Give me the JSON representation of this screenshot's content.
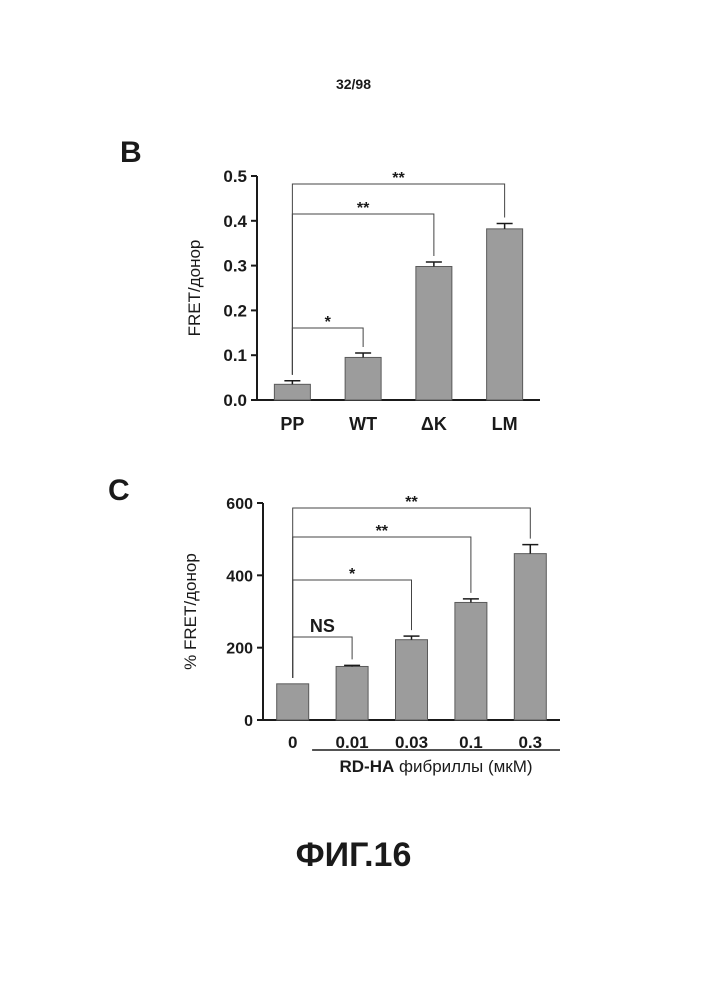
{
  "page": {
    "number": "32/98",
    "caption": "ФИГ.16"
  },
  "colors": {
    "bar": "#9c9c9c",
    "axis": "#1a1a1a"
  },
  "chart_data": [
    {
      "panel": "B",
      "type": "bar",
      "categories": [
        "PP",
        "WT",
        "ΔK",
        "LM"
      ],
      "values": [
        0.035,
        0.095,
        0.298,
        0.382
      ],
      "errors": [
        0.008,
        0.01,
        0.01,
        0.012
      ],
      "ylabel": "FRET/донор",
      "xlabel": "",
      "ylim": [
        0,
        0.5
      ],
      "yticks": [
        "0.0",
        "0.1",
        "0.2",
        "0.3",
        "0.4",
        "0.5"
      ],
      "annotations": [
        {
          "from": 0,
          "to": 1,
          "label": "*"
        },
        {
          "from": 0,
          "to": 2,
          "label": "**"
        },
        {
          "from": 0,
          "to": 3,
          "label": "**"
        }
      ]
    },
    {
      "panel": "C",
      "type": "bar",
      "categories": [
        "0",
        "0.01",
        "0.03",
        "0.1",
        "0.3"
      ],
      "values": [
        100,
        148,
        222,
        325,
        460
      ],
      "errors": [
        0,
        3,
        10,
        10,
        25
      ],
      "ylabel": "% FRET/донор",
      "xlabel_bold": "RD-HA",
      "xlabel_rest": " фибриллы (мкМ)",
      "ylim": [
        0,
        600
      ],
      "yticks": [
        "0",
        "200",
        "400",
        "600"
      ],
      "annotations": [
        {
          "from": 0,
          "to": 1,
          "label": "NS"
        },
        {
          "from": 0,
          "to": 2,
          "label": "*"
        },
        {
          "from": 0,
          "to": 3,
          "label": "**"
        },
        {
          "from": 0,
          "to": 4,
          "label": "**"
        }
      ]
    }
  ]
}
